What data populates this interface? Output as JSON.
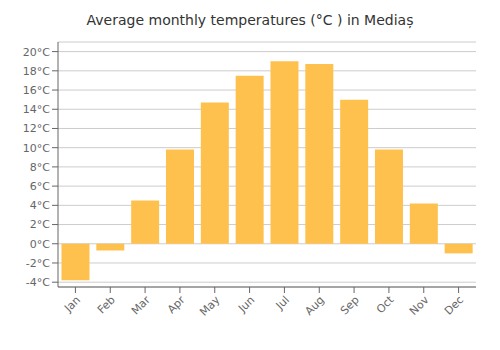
{
  "chart_data": {
    "type": "bar",
    "title": "Average monthly temperatures (°C ) in Mediaș",
    "categories": [
      "Jan",
      "Feb",
      "Mar",
      "Apr",
      "May",
      "Jun",
      "Jul",
      "Aug",
      "Sep",
      "Oct",
      "Nov",
      "Dec"
    ],
    "values": [
      -3.8,
      -0.7,
      4.5,
      9.8,
      14.7,
      17.5,
      19.0,
      18.7,
      15.0,
      9.8,
      4.2,
      -1.0
    ],
    "color": "#FFC14D",
    "ylim": [
      -4.5,
      21
    ],
    "yticks": [
      {
        "value": -4,
        "label": "-4°C"
      },
      {
        "value": -2,
        "label": "-2°C"
      },
      {
        "value": 0,
        "label": "0°C"
      },
      {
        "value": 2,
        "label": "2°C"
      },
      {
        "value": 4,
        "label": "4°C"
      },
      {
        "value": 6,
        "label": "6°C"
      },
      {
        "value": 8,
        "label": "8°C"
      },
      {
        "value": 10,
        "label": "10°C"
      },
      {
        "value": 12,
        "label": "12°C"
      },
      {
        "value": 14,
        "label": "14°C"
      },
      {
        "value": 16,
        "label": "16°C"
      },
      {
        "value": 18,
        "label": "18°C"
      },
      {
        "value": 20,
        "label": "20°C"
      }
    ],
    "grid": true
  }
}
